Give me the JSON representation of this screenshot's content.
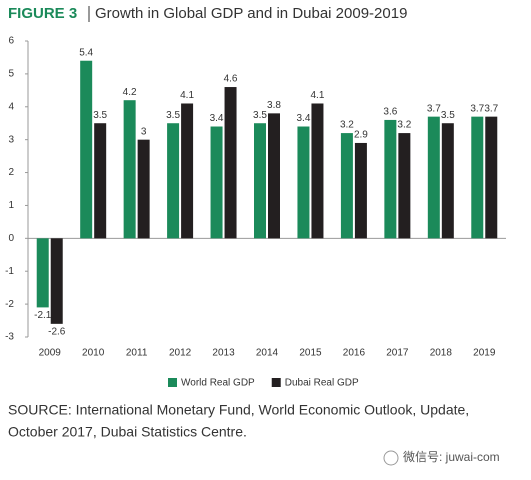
{
  "chart_data": {
    "type": "bar",
    "figure_label": "FIGURE 3",
    "title": "Growth in Global GDP and in Dubai 2009-2019",
    "categories": [
      "2009",
      "2010",
      "2011",
      "2012",
      "2013",
      "2014",
      "2015",
      "2016",
      "2017",
      "2018",
      "2019"
    ],
    "series": [
      {
        "name": "World Real GDP",
        "color": "#1b8a5a",
        "values": [
          -2.1,
          5.4,
          4.2,
          3.5,
          3.4,
          3.5,
          3.4,
          3.2,
          3.6,
          3.7,
          3.7
        ]
      },
      {
        "name": "Dubai Real GDP",
        "color": "#231f20",
        "values": [
          -2.6,
          3.5,
          3,
          4.1,
          4.6,
          3.8,
          4.1,
          2.9,
          3.2,
          3.5,
          3.7
        ]
      }
    ],
    "ylim": [
      -3,
      6
    ],
    "yticks": [
      -3,
      -2,
      -1,
      0,
      1,
      2,
      3,
      4,
      5,
      6
    ],
    "legend": "bottom",
    "source": [
      "SOURCE: International Monetary Fund, World Economic Outlook, Update,",
      "October 2017, Dubai Statistics Centre."
    ],
    "watermark": "微信号: juwai-com"
  }
}
